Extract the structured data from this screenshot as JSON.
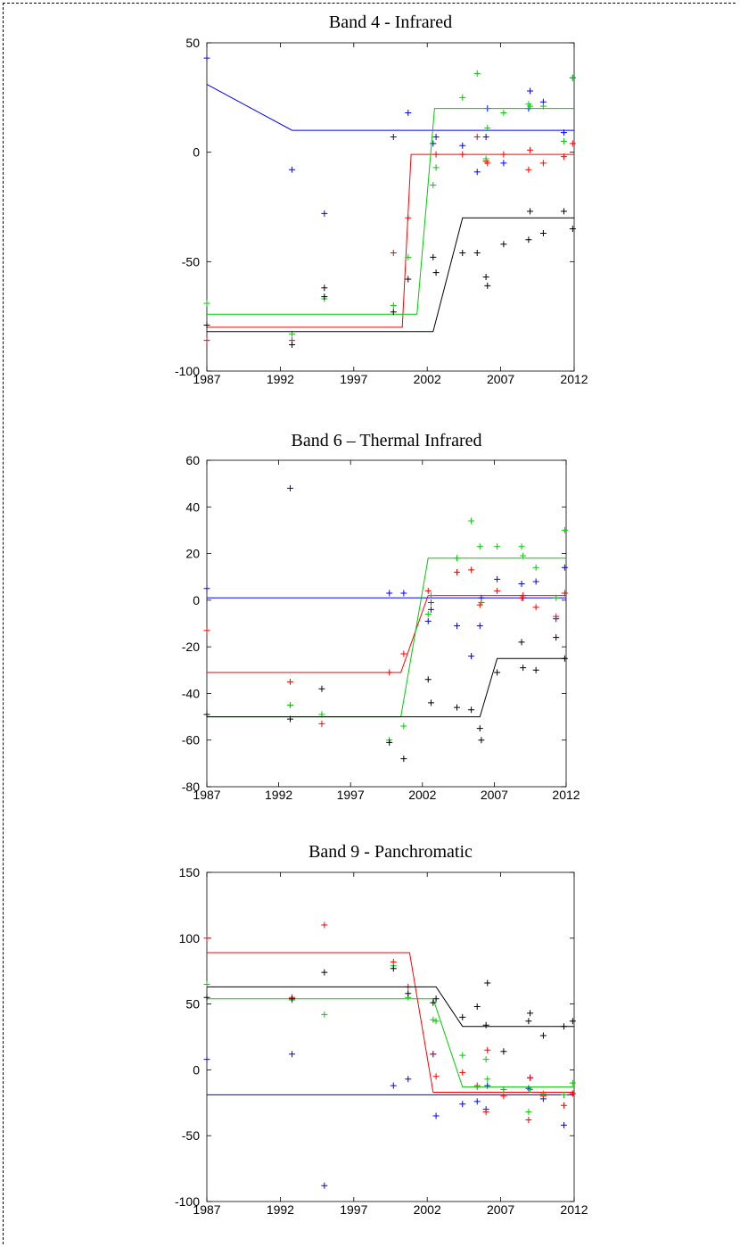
{
  "chart_data": [
    {
      "type": "scatter",
      "title": "Band 4 - Infrared",
      "xlim": [
        1987,
        2012
      ],
      "ylim": [
        -100,
        50
      ],
      "xticks": [
        1987,
        1992,
        1997,
        2002,
        2007,
        2012
      ],
      "yticks": [
        50,
        0,
        -50,
        -100
      ],
      "grid": false,
      "series": [
        {
          "color": "#0000ff",
          "points": [
            [
              1987,
              43
            ],
            [
              1992.8,
              -8
            ],
            [
              1995,
              -28
            ],
            [
              1999.7,
              7
            ],
            [
              2000.7,
              18
            ],
            [
              2002.4,
              4
            ],
            [
              2002.6,
              7
            ],
            [
              2004.4,
              3
            ],
            [
              2005.4,
              -9
            ],
            [
              2006,
              7
            ],
            [
              2006.1,
              20
            ],
            [
              2007.2,
              -5
            ],
            [
              2008.9,
              20
            ],
            [
              2009,
              28
            ],
            [
              2009.9,
              23
            ],
            [
              2011.3,
              9
            ],
            [
              2011.9,
              34
            ]
          ],
          "line": [
            [
              1987,
              31
            ],
            [
              1992.8,
              10
            ],
            [
              2012,
              10
            ]
          ]
        },
        {
          "color": "#ff0000",
          "points": [
            [
              1987,
              -86
            ],
            [
              1992.8,
              -86
            ],
            [
              1999.7,
              -46
            ],
            [
              2000.7,
              -30
            ],
            [
              2002.6,
              -1
            ],
            [
              2004.4,
              -1
            ],
            [
              2005.4,
              7
            ],
            [
              2006,
              -4
            ],
            [
              2006.1,
              -5
            ],
            [
              2007.2,
              -1
            ],
            [
              2008.9,
              -8
            ],
            [
              2009,
              1
            ],
            [
              2009.9,
              -5
            ],
            [
              2011.3,
              -2
            ],
            [
              2011.9,
              4
            ]
          ],
          "line": [
            [
              1987,
              -80
            ],
            [
              2000.3,
              -80
            ],
            [
              2000.9,
              -1
            ],
            [
              2012,
              -1
            ]
          ]
        },
        {
          "color": "#00cc00",
          "points": [
            [
              1987,
              -69
            ],
            [
              1992.8,
              -83
            ],
            [
              1995,
              -67
            ],
            [
              1999.7,
              -70
            ],
            [
              2000.7,
              -48
            ],
            [
              2002.4,
              -15
            ],
            [
              2002.6,
              -7
            ],
            [
              2004.4,
              25
            ],
            [
              2005.4,
              36
            ],
            [
              2006,
              -3
            ],
            [
              2006.1,
              11
            ],
            [
              2007.2,
              18
            ],
            [
              2008.9,
              22
            ],
            [
              2009,
              21
            ],
            [
              2009.9,
              21
            ],
            [
              2011.3,
              5
            ],
            [
              2011.9,
              34
            ]
          ],
          "line": [
            [
              1987,
              -74
            ],
            [
              2001.3,
              -74
            ],
            [
              2002.5,
              20
            ],
            [
              2012,
              20
            ]
          ]
        },
        {
          "color": "#000000",
          "points": [
            [
              1987,
              -79
            ],
            [
              1992.8,
              -88
            ],
            [
              1995,
              -62
            ],
            [
              1995,
              -66
            ],
            [
              1999.7,
              -73
            ],
            [
              2000.7,
              -58
            ],
            [
              2002.4,
              -48
            ],
            [
              2002.6,
              -55
            ],
            [
              2004.4,
              -46
            ],
            [
              2005.4,
              -46
            ],
            [
              2006,
              -57
            ],
            [
              2006.1,
              -61
            ],
            [
              2007.2,
              -42
            ],
            [
              2008.9,
              -40
            ],
            [
              2009,
              -27
            ],
            [
              2009.9,
              -37
            ],
            [
              2011.3,
              -27
            ],
            [
              2011.9,
              -35
            ]
          ],
          "line": [
            [
              1987,
              -82
            ],
            [
              2002.4,
              -82
            ],
            [
              2004.4,
              -30
            ],
            [
              2012,
              -30
            ]
          ]
        }
      ]
    },
    {
      "type": "scatter",
      "title": "Band 6 – Thermal Infrared",
      "xlim": [
        1987,
        2012
      ],
      "ylim": [
        -80,
        60
      ],
      "xticks": [
        1987,
        1992,
        1997,
        2002,
        2007,
        2012
      ],
      "yticks": [
        60,
        40,
        20,
        0,
        -20,
        -40,
        -60,
        -80
      ],
      "grid": false,
      "series": [
        {
          "color": "#0000ff",
          "points": [
            [
              1987,
              5
            ],
            [
              1992.8,
              48
            ],
            [
              1995,
              -49
            ],
            [
              1999.7,
              3
            ],
            [
              2000.7,
              3
            ],
            [
              2002.4,
              -9
            ],
            [
              2002.6,
              -4
            ],
            [
              2004.4,
              -11
            ],
            [
              2005.4,
              -24
            ],
            [
              2006,
              -11
            ],
            [
              2006.1,
              1
            ],
            [
              2007.2,
              9
            ],
            [
              2008.9,
              7
            ],
            [
              2009,
              1
            ],
            [
              2009.9,
              8
            ],
            [
              2011.3,
              -8
            ],
            [
              2011.9,
              14
            ]
          ],
          "line": [
            [
              1987,
              1
            ],
            [
              2012,
              1
            ]
          ]
        },
        {
          "color": "#ff0000",
          "points": [
            [
              1987,
              -13
            ],
            [
              1992.8,
              -35
            ],
            [
              1995,
              -53
            ],
            [
              1999.7,
              -31
            ],
            [
              2000.7,
              -23
            ],
            [
              2002.4,
              4
            ],
            [
              2002.6,
              -1
            ],
            [
              2004.4,
              12
            ],
            [
              2005.4,
              13
            ],
            [
              2006,
              -2
            ],
            [
              2006.1,
              -1
            ],
            [
              2007.2,
              4
            ],
            [
              2008.9,
              1
            ],
            [
              2009,
              2
            ],
            [
              2009.9,
              -3
            ],
            [
              2011.3,
              -7
            ],
            [
              2011.9,
              3
            ]
          ],
          "line": [
            [
              1987,
              -31
            ],
            [
              2000.5,
              -31
            ],
            [
              2002.4,
              2
            ],
            [
              2012,
              2
            ]
          ]
        },
        {
          "color": "#00cc00",
          "points": [
            [
              1987,
              -49
            ],
            [
              1992.8,
              -45
            ],
            [
              1995,
              -49
            ],
            [
              1999.7,
              -60
            ],
            [
              2000.7,
              -54
            ],
            [
              2002.4,
              -6
            ],
            [
              2002.6,
              2
            ],
            [
              2004.4,
              18
            ],
            [
              2005.4,
              34
            ],
            [
              2006,
              23
            ],
            [
              2006.1,
              -1
            ],
            [
              2007.2,
              23
            ],
            [
              2008.9,
              23
            ],
            [
              2009,
              19
            ],
            [
              2009.9,
              14
            ],
            [
              2011.3,
              1
            ],
            [
              2011.9,
              30
            ]
          ],
          "line": [
            [
              1987,
              -50
            ],
            [
              2000.5,
              -50
            ],
            [
              2002.4,
              18
            ],
            [
              2012,
              18
            ]
          ]
        },
        {
          "color": "#000000",
          "points": [
            [
              1987,
              -49
            ],
            [
              1992.8,
              -51
            ],
            [
              1995,
              -38
            ],
            [
              1999.7,
              -61
            ],
            [
              2000.7,
              -68
            ],
            [
              2002.4,
              -34
            ],
            [
              2002.6,
              -44
            ],
            [
              2004.4,
              -46
            ],
            [
              2005.4,
              -47
            ],
            [
              2006,
              -55
            ],
            [
              2006.1,
              -60
            ],
            [
              2007.2,
              -31
            ],
            [
              2008.9,
              -18
            ],
            [
              2009,
              -29
            ],
            [
              2009.9,
              -30
            ],
            [
              2011.3,
              -16
            ],
            [
              2011.9,
              -25
            ]
          ],
          "line": [
            [
              1987,
              -50
            ],
            [
              2006,
              -50
            ],
            [
              2007.2,
              -25
            ],
            [
              2012,
              -25
            ]
          ]
        }
      ]
    },
    {
      "type": "scatter",
      "title": "Band 9 - Panchromatic",
      "xlim": [
        1987,
        2012
      ],
      "ylim": [
        -100,
        150
      ],
      "xticks": [
        1987,
        1992,
        1997,
        2002,
        2007,
        2012
      ],
      "yticks": [
        150,
        100,
        50,
        0,
        -50,
        -100
      ],
      "grid": false,
      "series": [
        {
          "color": "#0000ff",
          "points": [
            [
              1987,
              8
            ],
            [
              1992.8,
              12
            ],
            [
              1995,
              -88
            ],
            [
              1999.7,
              -12
            ],
            [
              2000.7,
              -7
            ],
            [
              2002.4,
              12
            ],
            [
              2002.6,
              -35
            ],
            [
              2004.4,
              -26
            ],
            [
              2005.4,
              -24
            ],
            [
              2006,
              -30
            ],
            [
              2006.1,
              -12
            ],
            [
              2007.2,
              -15
            ],
            [
              2008.9,
              -14
            ],
            [
              2009,
              -6
            ],
            [
              2009.9,
              -22
            ],
            [
              2011.3,
              -42
            ],
            [
              2011.9,
              -18
            ]
          ],
          "line": [
            [
              1987,
              -19
            ],
            [
              2012,
              -19
            ]
          ]
        },
        {
          "color": "#ff0000",
          "points": [
            [
              1987,
              100
            ],
            [
              1992.8,
              55
            ],
            [
              1995,
              110
            ],
            [
              1999.7,
              82
            ],
            [
              2000.7,
              63
            ],
            [
              2002.4,
              12
            ],
            [
              2002.6,
              -5
            ],
            [
              2004.4,
              -2
            ],
            [
              2005.4,
              -12
            ],
            [
              2006,
              -32
            ],
            [
              2006.1,
              15
            ],
            [
              2007.2,
              -20
            ],
            [
              2008.9,
              -38
            ],
            [
              2009,
              -6
            ],
            [
              2009.9,
              -20
            ],
            [
              2011.3,
              -27
            ],
            [
              2011.9,
              -18
            ]
          ],
          "line": [
            [
              1987,
              89
            ],
            [
              2000.8,
              89
            ],
            [
              2002.4,
              -17
            ],
            [
              2012,
              -17
            ]
          ]
        },
        {
          "color": "#00cc00",
          "points": [
            [
              1987,
              65
            ],
            [
              1992.8,
              53
            ],
            [
              1995,
              42
            ],
            [
              1999.7,
              79
            ],
            [
              2000.7,
              55
            ],
            [
              2002.4,
              38
            ],
            [
              2002.6,
              37
            ],
            [
              2004.4,
              11
            ],
            [
              2005.4,
              -13
            ],
            [
              2006,
              8
            ],
            [
              2006.1,
              -7
            ],
            [
              2007.2,
              -15
            ],
            [
              2008.9,
              -32
            ],
            [
              2009,
              -15
            ],
            [
              2009.9,
              -18
            ],
            [
              2011.3,
              -19
            ],
            [
              2011.9,
              -10
            ]
          ],
          "line": [
            [
              1987,
              54
            ],
            [
              2002.4,
              54
            ],
            [
              2004.4,
              -13
            ],
            [
              2012,
              -13
            ]
          ]
        },
        {
          "color": "#000000",
          "points": [
            [
              1987,
              55
            ],
            [
              1992.8,
              54
            ],
            [
              1995,
              74
            ],
            [
              1999.7,
              77
            ],
            [
              2000.7,
              58
            ],
            [
              2002.4,
              51
            ],
            [
              2002.6,
              54
            ],
            [
              2004.4,
              40
            ],
            [
              2005.4,
              48
            ],
            [
              2006,
              34
            ],
            [
              2006.1,
              66
            ],
            [
              2007.2,
              14
            ],
            [
              2008.9,
              37
            ],
            [
              2009,
              43
            ],
            [
              2009.9,
              26
            ],
            [
              2011.3,
              33
            ],
            [
              2011.9,
              37
            ]
          ],
          "line": [
            [
              1987,
              63
            ],
            [
              2002.6,
              63
            ],
            [
              2004.4,
              33
            ],
            [
              2012,
              33
            ]
          ]
        }
      ]
    }
  ]
}
